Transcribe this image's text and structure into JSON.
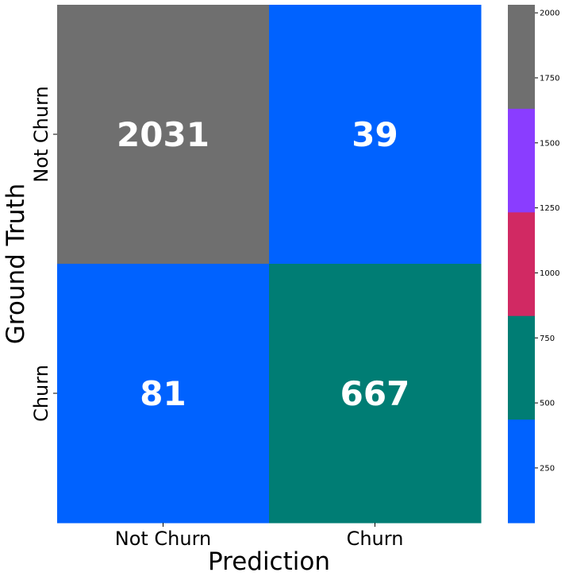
{
  "chart_data": {
    "type": "heatmap",
    "x_categories": [
      "Not Churn",
      "Churn"
    ],
    "y_categories": [
      "Not Churn",
      "Churn"
    ],
    "matrix": [
      [
        2031,
        39
      ],
      [
        81,
        667
      ]
    ],
    "xlabel": "Prediction",
    "ylabel": "Ground Truth",
    "colorbar": {
      "min": 39,
      "max": 2031,
      "ticks": [
        250,
        500,
        750,
        1000,
        1250,
        1500,
        1750,
        2000
      ],
      "colors": [
        "#0062ff",
        "#007d74",
        "#d12963",
        "#8a3dff",
        "#6f6f6f"
      ]
    }
  }
}
